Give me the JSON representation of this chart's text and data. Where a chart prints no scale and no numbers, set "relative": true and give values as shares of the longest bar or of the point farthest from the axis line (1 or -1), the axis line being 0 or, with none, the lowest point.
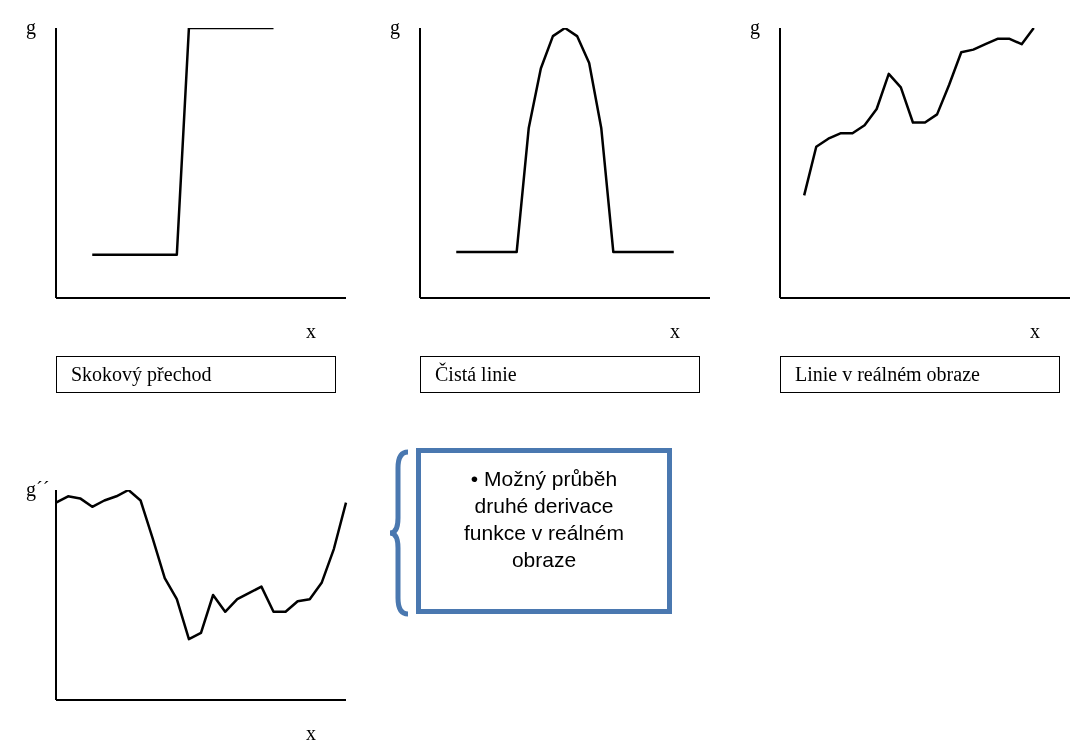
{
  "chart_data": [
    {
      "type": "line",
      "title": "Skokový přechod",
      "xlabel": "x",
      "ylabel": "g",
      "relative": true,
      "color": "#000000",
      "categories": [
        null,
        null,
        null,
        null,
        null,
        null,
        null,
        null,
        null,
        null,
        null,
        null,
        null,
        null,
        null,
        null,
        null,
        null,
        null,
        null,
        null,
        null,
        null,
        null,
        null
      ],
      "values": [
        null,
        null,
        null,
        0.16,
        0.16,
        0.16,
        0.16,
        0.16,
        0.16,
        0.16,
        0.16,
        1,
        1,
        1,
        1,
        1,
        1,
        1,
        1,
        null,
        null,
        null,
        null,
        null,
        null
      ]
    },
    {
      "type": "line",
      "title": "Čistá linie",
      "xlabel": "x",
      "ylabel": "g",
      "relative": true,
      "color": "#000000",
      "categories": [
        null,
        null,
        null,
        null,
        null,
        null,
        null,
        null,
        null,
        null,
        null,
        null,
        null,
        null,
        null,
        null,
        null,
        null,
        null,
        null,
        null,
        null,
        null,
        null,
        null
      ],
      "values": [
        null,
        null,
        null,
        0.17,
        0.17,
        0.17,
        0.17,
        0.17,
        0.17,
        0.63,
        0.85,
        0.97,
        1,
        0.97,
        0.87,
        0.63,
        0.17,
        0.17,
        0.17,
        0.17,
        0.17,
        0.17,
        null,
        null,
        null
      ]
    },
    {
      "type": "line",
      "title": "Linie v reálném obraze",
      "xlabel": "x",
      "ylabel": "g",
      "relative": true,
      "color": "#000000",
      "categories": [
        null,
        null,
        null,
        null,
        null,
        null,
        null,
        null,
        null,
        null,
        null,
        null,
        null,
        null,
        null,
        null,
        null,
        null,
        null,
        null,
        null,
        null,
        null,
        null,
        null
      ],
      "values": [
        null,
        null,
        0.38,
        0.56,
        0.59,
        0.61,
        0.61,
        0.64,
        0.7,
        0.83,
        0.78,
        0.65,
        0.65,
        0.68,
        0.79,
        0.91,
        0.92,
        0.94,
        0.96,
        0.96,
        0.94,
        1,
        null,
        null,
        null
      ]
    },
    {
      "type": "line",
      "xlabel": "x",
      "ylabel": "g´´",
      "relative": true,
      "color": "#000000",
      "annotations": [
        "• Možný průběh druhé derivace funkce v reálném obraze"
      ],
      "categories": [
        null,
        null,
        null,
        null,
        null,
        null,
        null,
        null,
        null,
        null,
        null,
        null,
        null,
        null,
        null,
        null,
        null,
        null,
        null,
        null,
        null,
        null,
        null,
        null,
        null
      ],
      "values": [
        0.94,
        0.97,
        0.96,
        0.92,
        0.95,
        0.97,
        1,
        0.95,
        0.77,
        0.58,
        0.48,
        0.29,
        0.32,
        0.5,
        0.42,
        0.48,
        0.51,
        0.54,
        0.42,
        0.42,
        0.47,
        0.48,
        0.56,
        0.72,
        0.94
      ]
    }
  ]
}
